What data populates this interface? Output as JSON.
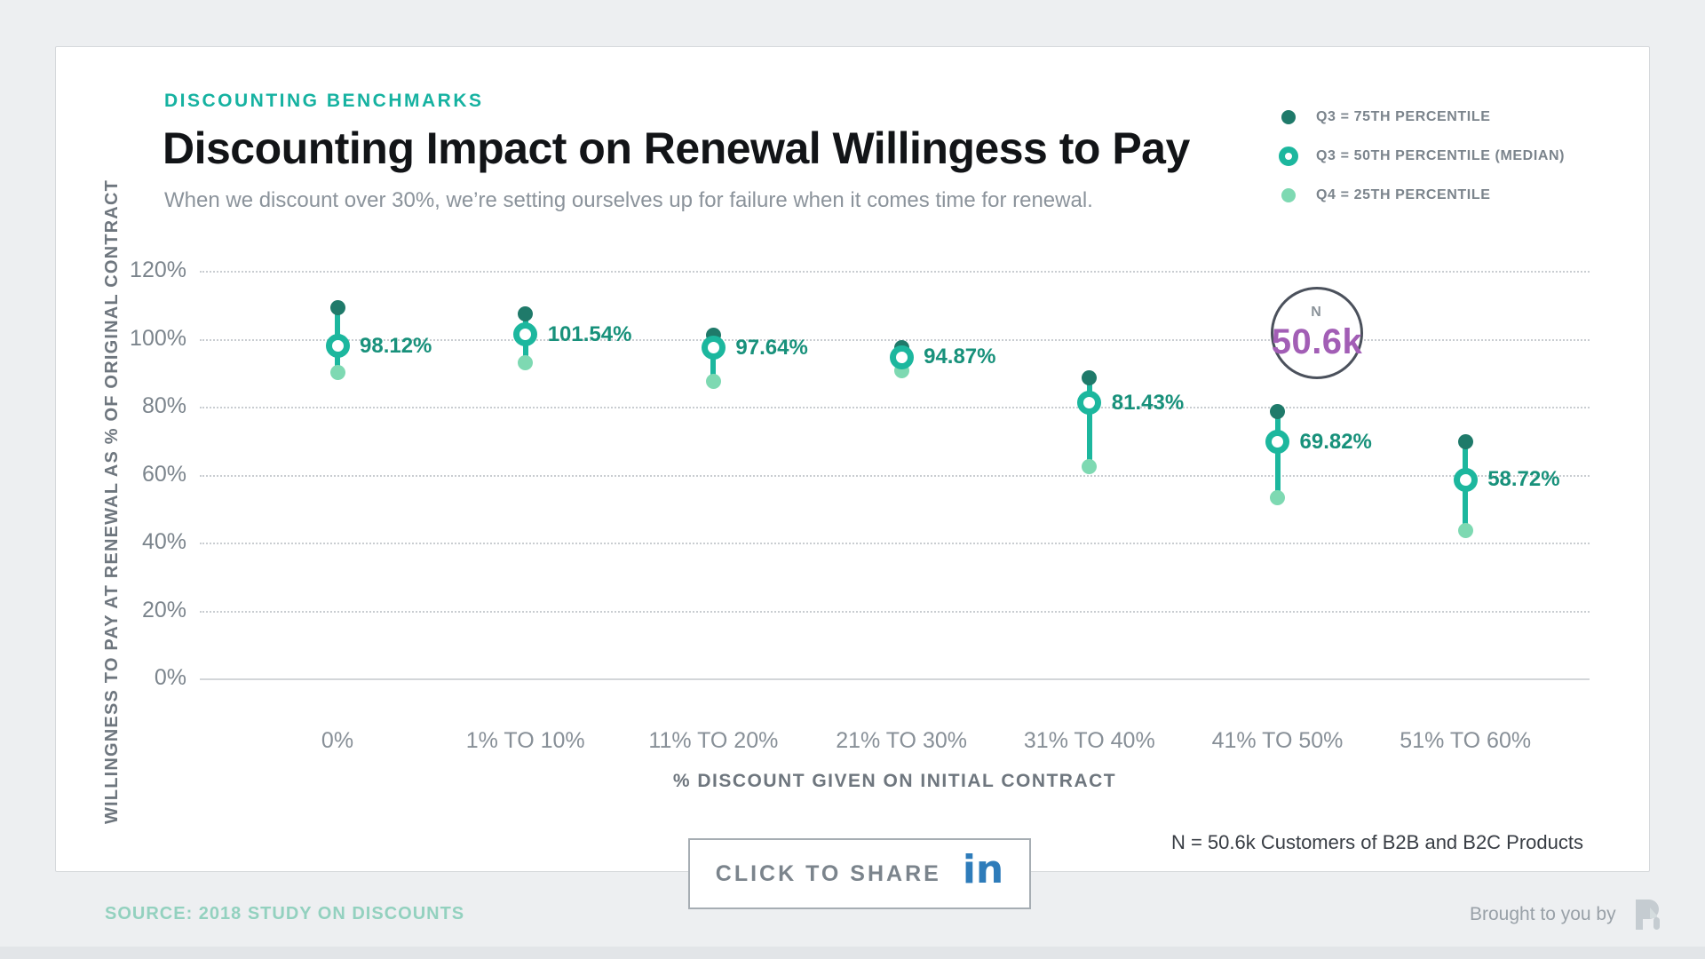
{
  "page": {
    "eyebrow": "DISCOUNTING BENCHMARKS",
    "title": "Discounting Impact on Renewal Willingess to Pay",
    "subtitle": "When we discount over 30%, we’re setting ourselves up for failure when it comes time for renewal.",
    "share_label": "CLICK TO SHARE",
    "linkedin_label": "in",
    "sample_note": "N = 50.6k Customers of B2B and B2C Products",
    "source": "SOURCE: 2018 STUDY ON DISCOUNTS",
    "brought_by": "Brought to you by"
  },
  "legend": {
    "items": [
      {
        "label": "Q3 = 75TH PERCENTILE",
        "marker": "filled-dark-dot"
      },
      {
        "label": "Q3 = 50TH PERCENTILE (MEDIAN)",
        "marker": "teal-ring"
      },
      {
        "label": "Q4 = 25TH PERCENTILE",
        "marker": "filled-light-dot"
      }
    ]
  },
  "badge": {
    "label": "N",
    "value": "50.6k"
  },
  "colors": {
    "accent_teal": "#16b2a1",
    "median_teal": "#1cb79e",
    "q3_dark": "#1f7a6a",
    "q1_light": "#7ed9b2",
    "value_label": "#18917b",
    "purple": "#a25eb5",
    "linkedin_blue": "#2e7cba",
    "source_teal": "#93d1bf",
    "grid_gray": "#c9cdd1"
  },
  "chart_data": {
    "type": "scatter",
    "subtype": "dumbbell-range-dot-plot",
    "title": "Discounting Impact on Renewal Willingess to Pay",
    "categories": [
      "0%",
      "1% TO 10%",
      "11% TO 20%",
      "21% TO 30%",
      "31% TO 40%",
      "41% TO 50%",
      "51% TO 60%"
    ],
    "series": [
      {
        "name": "Q3 = 75TH PERCENTILE",
        "values": [
          109.3,
          107.5,
          101.2,
          97.6,
          88.8,
          78.8,
          70.0
        ]
      },
      {
        "name": "Q3 = 50TH PERCENTILE (MEDIAN)",
        "values": [
          98.12,
          101.54,
          97.64,
          94.87,
          81.43,
          69.82,
          58.72
        ]
      },
      {
        "name": "Q4 = 25TH PERCENTILE",
        "values": [
          90.2,
          93.2,
          87.8,
          90.9,
          62.5,
          53.5,
          43.8
        ]
      }
    ],
    "median_labels": [
      "98.12%",
      "101.54%",
      "97.64%",
      "94.87%",
      "81.43%",
      "69.82%",
      "58.72%"
    ],
    "xlabel": "% DISCOUNT GIVEN ON INITIAL CONTRACT",
    "ylabel": "WILLINGNESS TO PAY AT RENEWAL AS % OF ORIGINAL CONTRACT",
    "ylim": [
      0,
      120
    ],
    "yticks": [
      0,
      20,
      40,
      60,
      80,
      100,
      120
    ],
    "ytick_suffix": "%",
    "grid": "dotted-horizontal",
    "legend_position": "top-right",
    "annotation": {
      "label": "N",
      "value": "50.6k",
      "category_anchor": "41% TO 50%"
    }
  }
}
